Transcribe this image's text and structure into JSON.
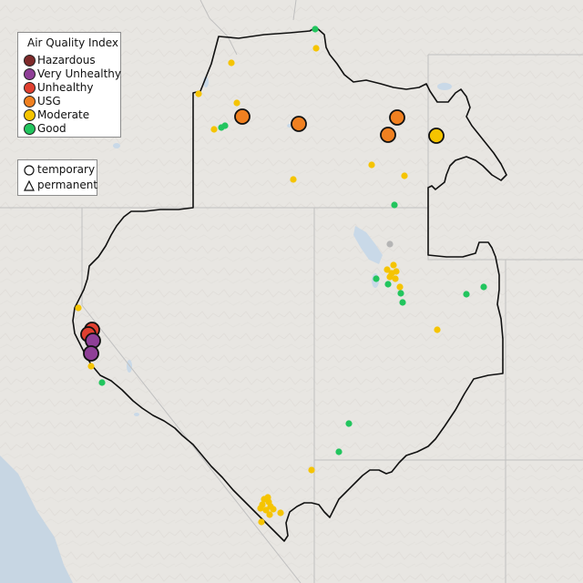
{
  "legend": {
    "title": "Air Quality Index",
    "categories": [
      {
        "key": "hazardous",
        "label": "Hazardous",
        "color": "#7e2a2a"
      },
      {
        "key": "very_unhealthy",
        "label": "Very Unhealthy",
        "color": "#8f3f97"
      },
      {
        "key": "unhealthy",
        "label": "Unhealthy",
        "color": "#e04030"
      },
      {
        "key": "usg",
        "label": "USG",
        "color": "#f08020"
      },
      {
        "key": "moderate",
        "label": "Moderate",
        "color": "#f5c400"
      },
      {
        "key": "good",
        "label": "Good",
        "color": "#22c55e"
      }
    ]
  },
  "monitor_type_legend": {
    "temporary_label": "temporary",
    "permanent_label": "permanent"
  },
  "colors": {
    "land": "#e8e6e2",
    "water_coast": "#c7d6e3",
    "lakes": "#c9d9e8",
    "state_border": "#c0c0c0",
    "region_boundary": "#111111",
    "unknown_monitor": "#b5b5b5"
  }
}
